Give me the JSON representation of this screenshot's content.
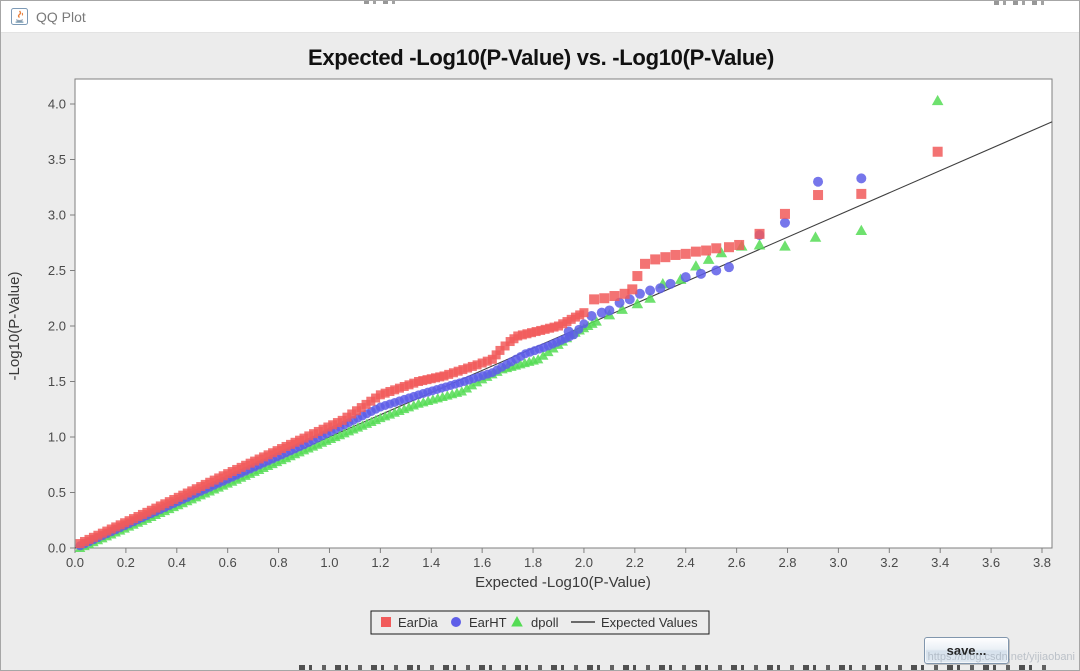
{
  "window": {
    "title": "QQ Plot"
  },
  "controls": {
    "save_label": "save..."
  },
  "watermark": "https://blog.csdn.net/yijiaobani",
  "chart_data": {
    "type": "scatter",
    "title": "Expected -Log10(P-Value) vs. -Log10(P-Value)",
    "xlabel": "Expected -Log10(P-Value)",
    "ylabel": "-Log10(P-Value)",
    "xlim": [
      0,
      3.84
    ],
    "ylim": [
      0,
      4.23
    ],
    "grid": false,
    "legend_position": "bottom-center",
    "x_ticks": [
      0.0,
      0.2,
      0.4,
      0.6,
      0.8,
      1.0,
      1.2,
      1.4,
      1.6,
      1.8,
      2.0,
      2.2,
      2.4,
      2.6,
      2.8,
      3.0,
      3.2,
      3.4,
      3.6,
      3.8
    ],
    "y_ticks": [
      0.0,
      0.5,
      1.0,
      1.5,
      2.0,
      2.5,
      3.0,
      3.5,
      4.0
    ],
    "reference_line": {
      "label": "Expected Values",
      "color": "#3f3f3f",
      "from": [
        0,
        0
      ],
      "to": [
        3.84,
        3.84
      ]
    },
    "series": [
      {
        "name": "EarDia",
        "marker": "square",
        "color": "#f15b5b",
        "dense_trail": [
          [
            0.02,
            0.04
          ],
          [
            0.3,
            0.34
          ],
          [
            0.6,
            0.67
          ],
          [
            0.9,
            0.99
          ],
          [
            1.05,
            1.15
          ],
          [
            1.2,
            1.38
          ],
          [
            1.35,
            1.5
          ],
          [
            1.45,
            1.55
          ],
          [
            1.58,
            1.65
          ],
          [
            1.64,
            1.7
          ],
          [
            1.67,
            1.78
          ],
          [
            1.71,
            1.86
          ],
          [
            1.74,
            1.91
          ],
          [
            1.83,
            1.96
          ],
          [
            1.9,
            2.0
          ],
          [
            1.95,
            2.06
          ],
          [
            2.0,
            2.12
          ]
        ],
        "points": [
          [
            2.04,
            2.24
          ],
          [
            2.08,
            2.25
          ],
          [
            2.12,
            2.27
          ],
          [
            2.16,
            2.29
          ],
          [
            2.19,
            2.33
          ],
          [
            2.21,
            2.45
          ],
          [
            2.24,
            2.56
          ],
          [
            2.28,
            2.6
          ],
          [
            2.32,
            2.62
          ],
          [
            2.36,
            2.64
          ],
          [
            2.4,
            2.65
          ],
          [
            2.44,
            2.67
          ],
          [
            2.48,
            2.68
          ],
          [
            2.52,
            2.7
          ],
          [
            2.57,
            2.71
          ],
          [
            2.61,
            2.73
          ],
          [
            2.69,
            2.83
          ],
          [
            2.79,
            3.01
          ],
          [
            2.92,
            3.18
          ],
          [
            3.09,
            3.19
          ],
          [
            3.39,
            3.57
          ]
        ]
      },
      {
        "name": "EarHT",
        "marker": "circle",
        "color": "#5e5ee8",
        "dense_trail": [
          [
            0.02,
            0.02
          ],
          [
            0.3,
            0.31
          ],
          [
            0.6,
            0.62
          ],
          [
            0.9,
            0.93
          ],
          [
            1.2,
            1.27
          ],
          [
            1.35,
            1.38
          ],
          [
            1.53,
            1.5
          ],
          [
            1.64,
            1.58
          ],
          [
            1.77,
            1.75
          ],
          [
            1.86,
            1.82
          ],
          [
            1.96,
            1.92
          ],
          [
            2.0,
            2.02
          ]
        ],
        "points": [
          [
            1.94,
            1.95
          ],
          [
            2.03,
            2.09
          ],
          [
            2.07,
            2.12
          ],
          [
            2.1,
            2.14
          ],
          [
            2.14,
            2.21
          ],
          [
            2.18,
            2.24
          ],
          [
            2.22,
            2.29
          ],
          [
            2.26,
            2.32
          ],
          [
            2.3,
            2.34
          ],
          [
            2.34,
            2.38
          ],
          [
            2.4,
            2.44
          ],
          [
            2.46,
            2.47
          ],
          [
            2.52,
            2.5
          ],
          [
            2.57,
            2.53
          ],
          [
            2.69,
            2.82
          ],
          [
            2.79,
            2.93
          ],
          [
            2.92,
            3.3
          ],
          [
            3.09,
            3.33
          ]
        ]
      },
      {
        "name": "dpoll",
        "marker": "triangle",
        "color": "#55dc55",
        "dense_trail": [
          [
            0.02,
            0.0
          ],
          [
            0.3,
            0.28
          ],
          [
            0.6,
            0.58
          ],
          [
            0.9,
            0.88
          ],
          [
            1.2,
            1.17
          ],
          [
            1.35,
            1.3
          ],
          [
            1.52,
            1.41
          ],
          [
            1.6,
            1.52
          ],
          [
            1.68,
            1.61
          ],
          [
            1.82,
            1.7
          ],
          [
            1.9,
            1.83
          ],
          [
            1.95,
            1.92
          ],
          [
            2.05,
            2.04
          ]
        ],
        "points": [
          [
            2.1,
            2.1
          ],
          [
            2.15,
            2.15
          ],
          [
            2.21,
            2.2
          ],
          [
            2.26,
            2.25
          ],
          [
            2.31,
            2.38
          ],
          [
            2.38,
            2.42
          ],
          [
            2.44,
            2.54
          ],
          [
            2.49,
            2.6
          ],
          [
            2.54,
            2.66
          ],
          [
            2.62,
            2.72
          ],
          [
            2.69,
            2.73
          ],
          [
            2.79,
            2.72
          ],
          [
            2.91,
            2.8
          ],
          [
            3.09,
            2.86
          ],
          [
            3.39,
            4.03
          ]
        ]
      }
    ]
  }
}
